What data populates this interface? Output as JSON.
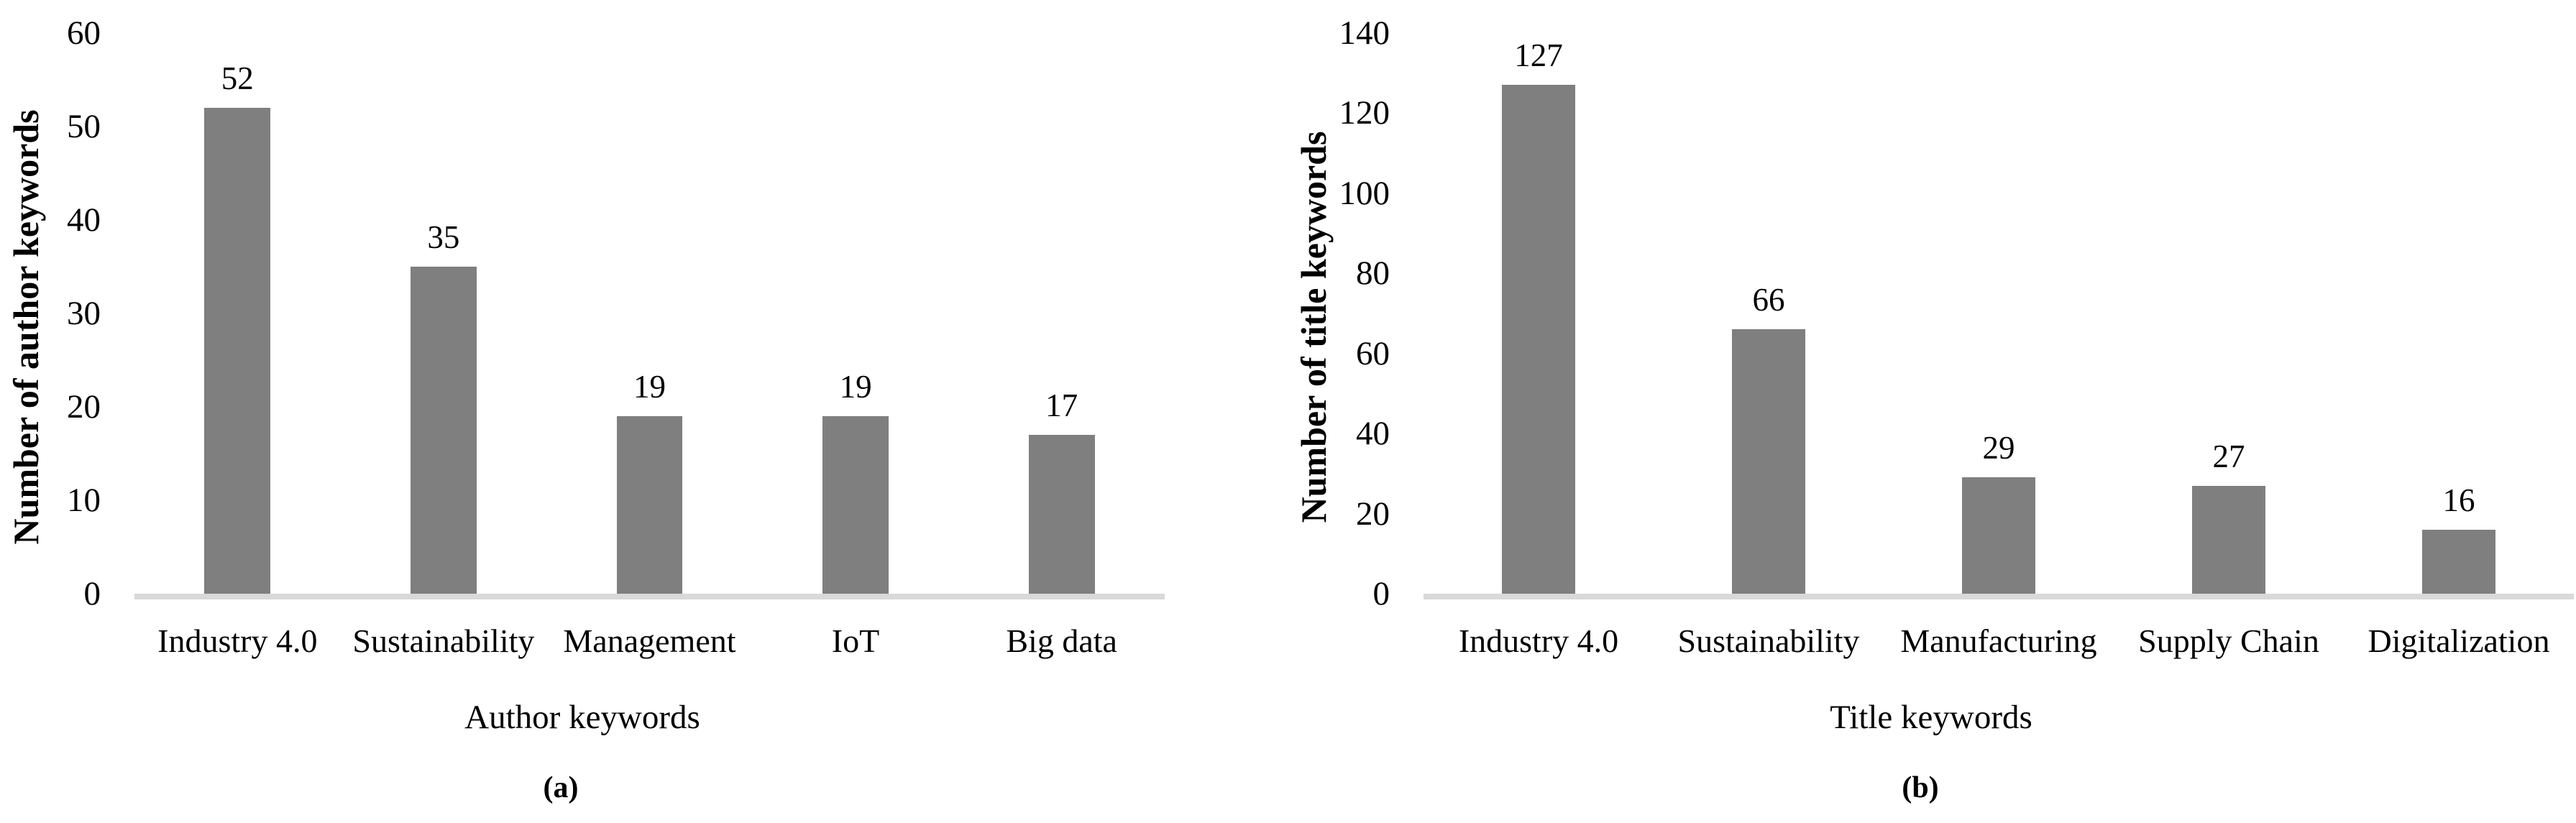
{
  "chart_data": [
    {
      "type": "bar",
      "panel": "a",
      "caption": "(a)",
      "categories": [
        "Industry 4.0",
        "Sustainability",
        "Management",
        "IoT",
        "Big data"
      ],
      "values": [
        52,
        35,
        19,
        19,
        17
      ],
      "xlabel": "Author keywords",
      "ylabel": "Number of author keywords",
      "ylim": [
        0,
        60
      ],
      "yticks": [
        0,
        10,
        20,
        30,
        40,
        50,
        60
      ],
      "grid": false,
      "legend": "none",
      "bar_color": "#7f7f7f",
      "axis_line_color": "#d9d9d9"
    },
    {
      "type": "bar",
      "panel": "b",
      "caption": "(b)",
      "categories": [
        "Industry 4.0",
        "Sustainability",
        "Manufacturing",
        "Supply Chain",
        "Digitalization"
      ],
      "values": [
        127,
        66,
        29,
        27,
        16
      ],
      "xlabel": "Title keywords",
      "ylabel": "Number of title keywords",
      "ylim": [
        0,
        140
      ],
      "yticks": [
        0,
        20,
        40,
        60,
        80,
        100,
        120,
        140
      ],
      "grid": false,
      "legend": "none",
      "bar_color": "#7f7f7f",
      "axis_line_color": "#d9d9d9"
    }
  ]
}
